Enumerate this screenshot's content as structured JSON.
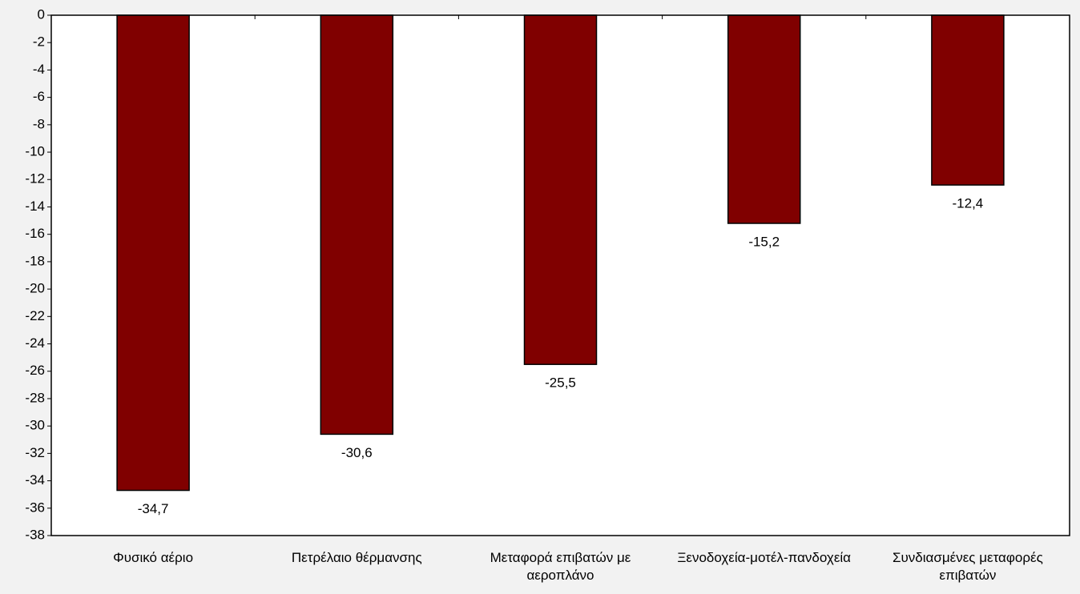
{
  "chart_data": {
    "type": "bar",
    "categories": [
      "Φυσικό αέριο",
      "Πετρέλαιο θέρμανσης",
      "Μεταφορά επιβατών με αεροπλάνο",
      "Ξενοδοχεία-μοτέλ-πανδοχεία",
      "Συνδιασμένες μεταφορές επιβατών"
    ],
    "values": [
      -34.7,
      -30.6,
      -25.5,
      -15.2,
      -12.4
    ],
    "value_labels": [
      "-34,7",
      "-30,6",
      "-25,5",
      "-15,2",
      "-12,4"
    ],
    "color": "#800000",
    "ylim": [
      -38,
      0
    ],
    "yticks": [
      0,
      -2,
      -4,
      -6,
      -8,
      -10,
      -12,
      -14,
      -16,
      -18,
      -20,
      -22,
      -24,
      -26,
      -28,
      -30,
      -32,
      -34,
      -36,
      -38
    ],
    "grid": false
  }
}
